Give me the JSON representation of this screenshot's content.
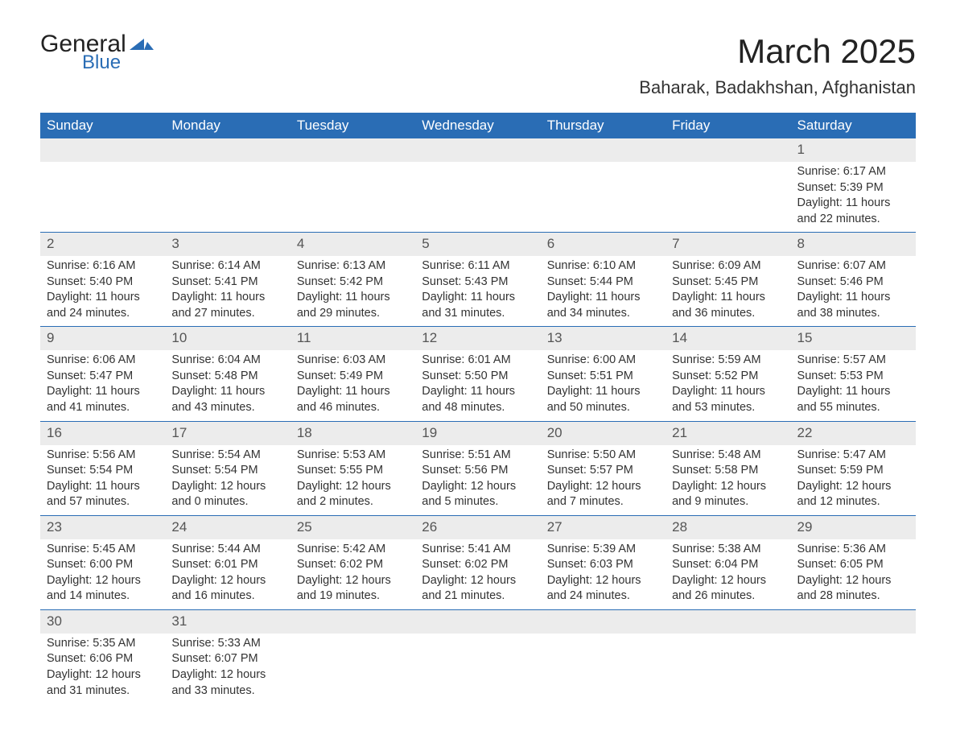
{
  "brand": {
    "name_part1": "General",
    "name_part2": "Blue",
    "text_color": "#222222",
    "accent_color": "#2a6db5"
  },
  "title": "March 2025",
  "location": "Baharak, Badakhshan, Afghanistan",
  "colors": {
    "header_bg": "#2a6db5",
    "header_text": "#ffffff",
    "daynum_bg": "#ececec",
    "row_divider": "#2a6db5",
    "body_text": "#333333",
    "background": "#ffffff"
  },
  "weekdays": [
    "Sunday",
    "Monday",
    "Tuesday",
    "Wednesday",
    "Thursday",
    "Friday",
    "Saturday"
  ],
  "weeks": [
    [
      null,
      null,
      null,
      null,
      null,
      null,
      {
        "day": "1",
        "sunrise": "Sunrise: 6:17 AM",
        "sunset": "Sunset: 5:39 PM",
        "daylight1": "Daylight: 11 hours",
        "daylight2": "and 22 minutes."
      }
    ],
    [
      {
        "day": "2",
        "sunrise": "Sunrise: 6:16 AM",
        "sunset": "Sunset: 5:40 PM",
        "daylight1": "Daylight: 11 hours",
        "daylight2": "and 24 minutes."
      },
      {
        "day": "3",
        "sunrise": "Sunrise: 6:14 AM",
        "sunset": "Sunset: 5:41 PM",
        "daylight1": "Daylight: 11 hours",
        "daylight2": "and 27 minutes."
      },
      {
        "day": "4",
        "sunrise": "Sunrise: 6:13 AM",
        "sunset": "Sunset: 5:42 PM",
        "daylight1": "Daylight: 11 hours",
        "daylight2": "and 29 minutes."
      },
      {
        "day": "5",
        "sunrise": "Sunrise: 6:11 AM",
        "sunset": "Sunset: 5:43 PM",
        "daylight1": "Daylight: 11 hours",
        "daylight2": "and 31 minutes."
      },
      {
        "day": "6",
        "sunrise": "Sunrise: 6:10 AM",
        "sunset": "Sunset: 5:44 PM",
        "daylight1": "Daylight: 11 hours",
        "daylight2": "and 34 minutes."
      },
      {
        "day": "7",
        "sunrise": "Sunrise: 6:09 AM",
        "sunset": "Sunset: 5:45 PM",
        "daylight1": "Daylight: 11 hours",
        "daylight2": "and 36 minutes."
      },
      {
        "day": "8",
        "sunrise": "Sunrise: 6:07 AM",
        "sunset": "Sunset: 5:46 PM",
        "daylight1": "Daylight: 11 hours",
        "daylight2": "and 38 minutes."
      }
    ],
    [
      {
        "day": "9",
        "sunrise": "Sunrise: 6:06 AM",
        "sunset": "Sunset: 5:47 PM",
        "daylight1": "Daylight: 11 hours",
        "daylight2": "and 41 minutes."
      },
      {
        "day": "10",
        "sunrise": "Sunrise: 6:04 AM",
        "sunset": "Sunset: 5:48 PM",
        "daylight1": "Daylight: 11 hours",
        "daylight2": "and 43 minutes."
      },
      {
        "day": "11",
        "sunrise": "Sunrise: 6:03 AM",
        "sunset": "Sunset: 5:49 PM",
        "daylight1": "Daylight: 11 hours",
        "daylight2": "and 46 minutes."
      },
      {
        "day": "12",
        "sunrise": "Sunrise: 6:01 AM",
        "sunset": "Sunset: 5:50 PM",
        "daylight1": "Daylight: 11 hours",
        "daylight2": "and 48 minutes."
      },
      {
        "day": "13",
        "sunrise": "Sunrise: 6:00 AM",
        "sunset": "Sunset: 5:51 PM",
        "daylight1": "Daylight: 11 hours",
        "daylight2": "and 50 minutes."
      },
      {
        "day": "14",
        "sunrise": "Sunrise: 5:59 AM",
        "sunset": "Sunset: 5:52 PM",
        "daylight1": "Daylight: 11 hours",
        "daylight2": "and 53 minutes."
      },
      {
        "day": "15",
        "sunrise": "Sunrise: 5:57 AM",
        "sunset": "Sunset: 5:53 PM",
        "daylight1": "Daylight: 11 hours",
        "daylight2": "and 55 minutes."
      }
    ],
    [
      {
        "day": "16",
        "sunrise": "Sunrise: 5:56 AM",
        "sunset": "Sunset: 5:54 PM",
        "daylight1": "Daylight: 11 hours",
        "daylight2": "and 57 minutes."
      },
      {
        "day": "17",
        "sunrise": "Sunrise: 5:54 AM",
        "sunset": "Sunset: 5:54 PM",
        "daylight1": "Daylight: 12 hours",
        "daylight2": "and 0 minutes."
      },
      {
        "day": "18",
        "sunrise": "Sunrise: 5:53 AM",
        "sunset": "Sunset: 5:55 PM",
        "daylight1": "Daylight: 12 hours",
        "daylight2": "and 2 minutes."
      },
      {
        "day": "19",
        "sunrise": "Sunrise: 5:51 AM",
        "sunset": "Sunset: 5:56 PM",
        "daylight1": "Daylight: 12 hours",
        "daylight2": "and 5 minutes."
      },
      {
        "day": "20",
        "sunrise": "Sunrise: 5:50 AM",
        "sunset": "Sunset: 5:57 PM",
        "daylight1": "Daylight: 12 hours",
        "daylight2": "and 7 minutes."
      },
      {
        "day": "21",
        "sunrise": "Sunrise: 5:48 AM",
        "sunset": "Sunset: 5:58 PM",
        "daylight1": "Daylight: 12 hours",
        "daylight2": "and 9 minutes."
      },
      {
        "day": "22",
        "sunrise": "Sunrise: 5:47 AM",
        "sunset": "Sunset: 5:59 PM",
        "daylight1": "Daylight: 12 hours",
        "daylight2": "and 12 minutes."
      }
    ],
    [
      {
        "day": "23",
        "sunrise": "Sunrise: 5:45 AM",
        "sunset": "Sunset: 6:00 PM",
        "daylight1": "Daylight: 12 hours",
        "daylight2": "and 14 minutes."
      },
      {
        "day": "24",
        "sunrise": "Sunrise: 5:44 AM",
        "sunset": "Sunset: 6:01 PM",
        "daylight1": "Daylight: 12 hours",
        "daylight2": "and 16 minutes."
      },
      {
        "day": "25",
        "sunrise": "Sunrise: 5:42 AM",
        "sunset": "Sunset: 6:02 PM",
        "daylight1": "Daylight: 12 hours",
        "daylight2": "and 19 minutes."
      },
      {
        "day": "26",
        "sunrise": "Sunrise: 5:41 AM",
        "sunset": "Sunset: 6:02 PM",
        "daylight1": "Daylight: 12 hours",
        "daylight2": "and 21 minutes."
      },
      {
        "day": "27",
        "sunrise": "Sunrise: 5:39 AM",
        "sunset": "Sunset: 6:03 PM",
        "daylight1": "Daylight: 12 hours",
        "daylight2": "and 24 minutes."
      },
      {
        "day": "28",
        "sunrise": "Sunrise: 5:38 AM",
        "sunset": "Sunset: 6:04 PM",
        "daylight1": "Daylight: 12 hours",
        "daylight2": "and 26 minutes."
      },
      {
        "day": "29",
        "sunrise": "Sunrise: 5:36 AM",
        "sunset": "Sunset: 6:05 PM",
        "daylight1": "Daylight: 12 hours",
        "daylight2": "and 28 minutes."
      }
    ],
    [
      {
        "day": "30",
        "sunrise": "Sunrise: 5:35 AM",
        "sunset": "Sunset: 6:06 PM",
        "daylight1": "Daylight: 12 hours",
        "daylight2": "and 31 minutes."
      },
      {
        "day": "31",
        "sunrise": "Sunrise: 5:33 AM",
        "sunset": "Sunset: 6:07 PM",
        "daylight1": "Daylight: 12 hours",
        "daylight2": "and 33 minutes."
      },
      null,
      null,
      null,
      null,
      null
    ]
  ]
}
